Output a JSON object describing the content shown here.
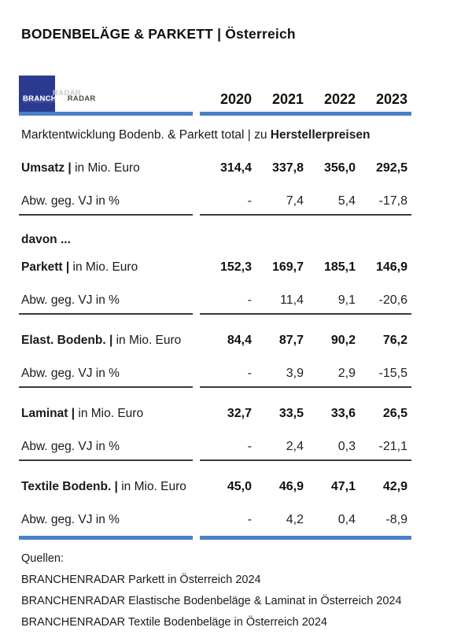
{
  "page_title": "BODENBELÄGE & PARKETT | Österreich",
  "logo": {
    "name": "branchenradar-logo",
    "part_white": "BRANCHEN",
    "part_dark": "RADAR",
    "square_color": "#2a3a8e"
  },
  "colors": {
    "accent_blue": "#4a80c8",
    "logo_navy": "#2a3a8e",
    "rule_dark": "#3a3a3a",
    "text": "#111111"
  },
  "table": {
    "years": [
      "2020",
      "2021",
      "2022",
      "2023"
    ],
    "section_title_regular": "Marktentwicklung Bodenb. & Parkett total | zu ",
    "section_title_bold": "Herstellerpreisen",
    "davon_label": "davon ...",
    "abw_label": "Abw. geg. VJ in %",
    "unit_suffix": " in Mio. Euro",
    "rows": [
      {
        "label_bold": "Umsatz |",
        "values": [
          "314,4",
          "337,8",
          "356,0",
          "292,5"
        ],
        "abw": [
          "-",
          "7,4",
          "5,4",
          "-17,8"
        ]
      },
      {
        "label_bold": "Parkett |",
        "values": [
          "152,3",
          "169,7",
          "185,1",
          "146,9"
        ],
        "abw": [
          "-",
          "11,4",
          "9,1",
          "-20,6"
        ]
      },
      {
        "label_bold": "Elast. Bodenb. |",
        "values": [
          "84,4",
          "87,7",
          "90,2",
          "76,2"
        ],
        "abw": [
          "-",
          "3,9",
          "2,9",
          "-15,5"
        ]
      },
      {
        "label_bold": "Laminat |",
        "values": [
          "32,7",
          "33,5",
          "33,6",
          "26,5"
        ],
        "abw": [
          "-",
          "2,4",
          "0,3",
          "-21,1"
        ]
      },
      {
        "label_bold": "Textile Bodenb. |",
        "values": [
          "45,0",
          "46,9",
          "47,1",
          "42,9"
        ],
        "abw": [
          "-",
          "4,2",
          "0,4",
          "-8,9"
        ]
      }
    ]
  },
  "footer": {
    "quellen_label": "Quellen:",
    "sources": [
      "BRANCHENRADAR Parkett in Österreich 2024",
      "BRANCHENRADAR Elastische Bodenbeläge & Laminat in Österreich 2024",
      "BRANCHENRADAR Textile Bodenbeläge in Österreich 2024"
    ]
  }
}
